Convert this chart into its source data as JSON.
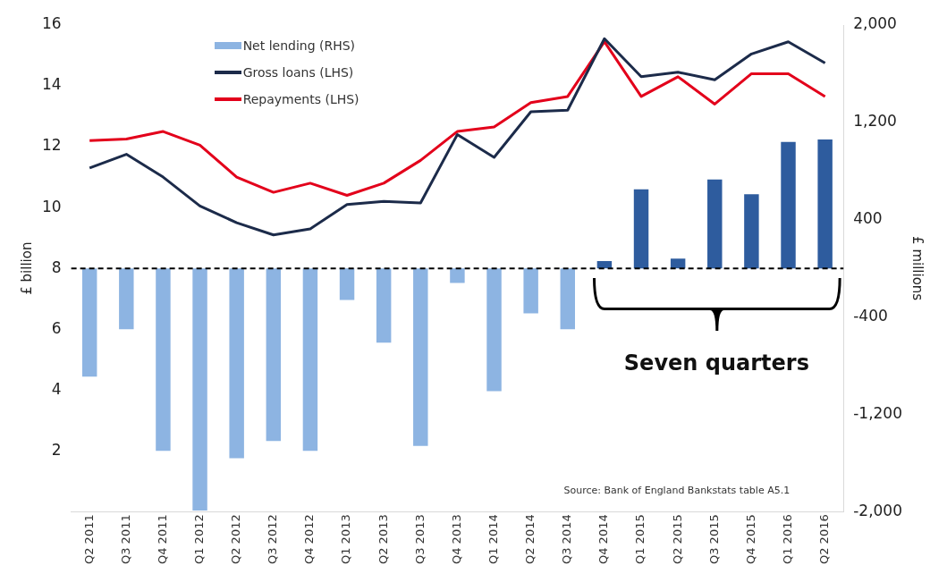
{
  "chart_data": {
    "type": "bar",
    "categories": [
      "Q2 2011",
      "Q3 2011",
      "Q4 2011",
      "Q1 2012",
      "Q2 2012",
      "Q3 2012",
      "Q4 2012",
      "Q1 2013",
      "Q2 2013",
      "Q3 2013",
      "Q4 2013",
      "Q1 2014",
      "Q2 2014",
      "Q3 2014",
      "Q4 2014",
      "Q1 2015",
      "Q2 2015",
      "Q3 2015",
      "Q4 2015",
      "Q1 2016",
      "Q2 2016"
    ],
    "series": [
      {
        "name": "Net lending (RHS)",
        "axis": "y2",
        "color": "#8db4e2",
        "colors": [
          "#8db4e2",
          "#8db4e2",
          "#8db4e2",
          "#8db4e2",
          "#8db4e2",
          "#8db4e2",
          "#8db4e2",
          "#8db4e2",
          "#8db4e2",
          "#8db4e2",
          "#8db4e2",
          "#8db4e2",
          "#8db4e2",
          "#8db4e2",
          "#2e5c9e",
          "#2e5c9e",
          "#2e5c9e",
          "#2e5c9e",
          "#2e5c9e",
          "#2e5c9e",
          "#2e5c9e"
        ],
        "values": [
          -890,
          -500,
          -1500,
          -1990,
          -1560,
          -1420,
          -1500,
          -260,
          -610,
          -1460,
          -120,
          -1010,
          -370,
          -500,
          60,
          650,
          80,
          730,
          610,
          1040,
          1060
        ]
      },
      {
        "name": "Gross loans (LHS)",
        "type": "line",
        "color": "#1c2b4a",
        "values": [
          11.3,
          11.75,
          11.0,
          10.05,
          9.5,
          9.1,
          9.3,
          10.1,
          10.2,
          10.15,
          12.4,
          11.65,
          13.15,
          13.2,
          15.55,
          14.3,
          14.45,
          14.2,
          15.05,
          15.45,
          14.75
        ]
      },
      {
        "name": "Repayments (LHS)",
        "type": "line",
        "color": "#e3001b",
        "values": [
          12.2,
          12.25,
          12.5,
          12.05,
          11.0,
          10.5,
          10.8,
          10.4,
          10.8,
          11.55,
          12.5,
          12.65,
          13.45,
          13.65,
          15.45,
          13.65,
          14.3,
          13.4,
          14.4,
          14.4,
          13.65
        ]
      }
    ],
    "ylabel": "£ billion",
    "y2label": "£ millions",
    "ylim": [
      0,
      16
    ],
    "yticks": [
      2,
      4,
      6,
      8,
      10,
      12,
      14,
      16
    ],
    "y2lim": [
      -2000,
      2000
    ],
    "y2ticks": [
      {
        "value": -2000,
        "label": "-2,000"
      },
      {
        "value": -1200,
        "label": "-1,200"
      },
      -400,
      400,
      {
        "value": 1200,
        "label": "1,200"
      },
      {
        "value": 2000,
        "label": "2,000"
      }
    ],
    "ref_lines": [
      {
        "axis": "y",
        "value": 8,
        "color": "#000000",
        "line_style": "dashed"
      }
    ],
    "annotations": [
      "Seven quarters",
      "Source: Bank of England Bankstats table A5.1"
    ],
    "legend": "top left",
    "grid": false,
    "marker": "none",
    "line_style": "solid"
  }
}
